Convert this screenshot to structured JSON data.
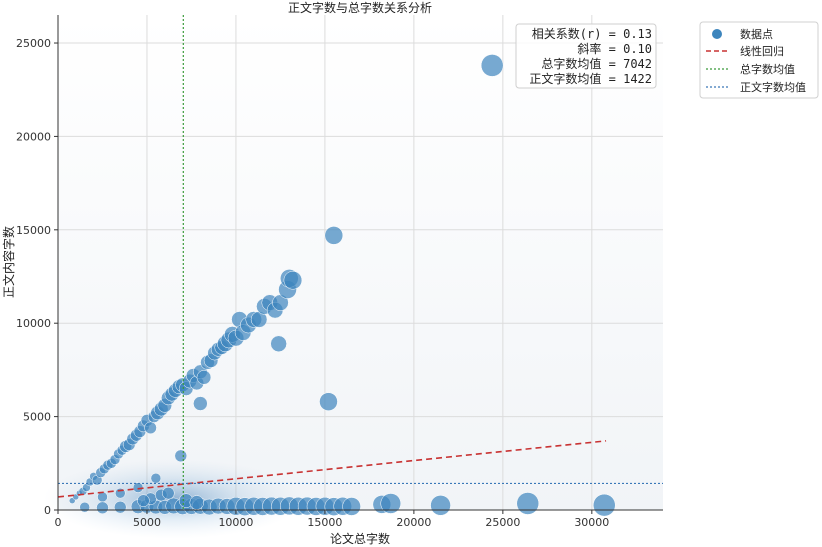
{
  "chart_data": {
    "type": "scatter",
    "title": "正文字数与总字数关系分析",
    "xlabel": "论文总字数",
    "ylabel": "正文内容字数",
    "xlim": [
      0,
      34000
    ],
    "ylim": [
      0,
      26500
    ],
    "xticks": [
      0,
      5000,
      10000,
      15000,
      20000,
      25000,
      30000
    ],
    "yticks": [
      0,
      5000,
      10000,
      15000,
      20000,
      25000
    ],
    "grid": true,
    "legend_position": "outside-top-right",
    "legend": [
      "数据点",
      "线性回归",
      "总字数均值",
      "正文字数均值"
    ],
    "annotations": [
      "相关系数(r) = 0.13",
      "斜率 = 0.10",
      "总字数均值 = 7042",
      "正文字数均值 = 1422"
    ],
    "colors": {
      "points": "#3d85bd",
      "regression": "#c83232",
      "x_mean": "#3a9a3a",
      "y_mean": "#3a78b8"
    },
    "regression": {
      "x": [
        0,
        30800
      ],
      "y": [
        700,
        3700
      ]
    },
    "x_mean": 7042,
    "y_mean": 1422,
    "density_center": [
      6500,
      600
    ],
    "series": [
      {
        "name": "数据点",
        "points": [
          [
            800,
            500,
            3
          ],
          [
            1000,
            700,
            3
          ],
          [
            1200,
            900,
            3
          ],
          [
            1400,
            1000,
            4
          ],
          [
            1600,
            1200,
            4
          ],
          [
            1800,
            1500,
            4
          ],
          [
            2000,
            1800,
            4
          ],
          [
            2200,
            1600,
            5
          ],
          [
            2400,
            2000,
            5
          ],
          [
            2600,
            2200,
            5
          ],
          [
            2800,
            2400,
            5
          ],
          [
            3000,
            2500,
            5
          ],
          [
            3200,
            2700,
            5
          ],
          [
            3400,
            3000,
            5
          ],
          [
            3600,
            3200,
            5
          ],
          [
            3800,
            3400,
            6
          ],
          [
            4000,
            3500,
            6
          ],
          [
            4200,
            3800,
            6
          ],
          [
            4400,
            4000,
            6
          ],
          [
            4600,
            4200,
            6
          ],
          [
            4800,
            4500,
            6
          ],
          [
            5000,
            4800,
            6
          ],
          [
            5200,
            4400,
            6
          ],
          [
            5400,
            5000,
            6
          ],
          [
            5600,
            5200,
            7
          ],
          [
            5800,
            5400,
            7
          ],
          [
            6000,
            5600,
            7
          ],
          [
            6200,
            6000,
            7
          ],
          [
            6400,
            6200,
            7
          ],
          [
            6600,
            6400,
            7
          ],
          [
            6800,
            6600,
            7
          ],
          [
            7000,
            6700,
            7
          ],
          [
            7200,
            6500,
            7
          ],
          [
            7400,
            6900,
            7
          ],
          [
            7600,
            7200,
            7
          ],
          [
            7800,
            6800,
            7
          ],
          [
            8000,
            7400,
            7
          ],
          [
            8200,
            7100,
            7
          ],
          [
            8400,
            7900,
            7
          ],
          [
            8600,
            8000,
            7
          ],
          [
            8800,
            8400,
            7
          ],
          [
            9000,
            8600,
            7
          ],
          [
            9200,
            8700,
            7
          ],
          [
            9400,
            8900,
            8
          ],
          [
            9600,
            9100,
            8
          ],
          [
            9800,
            9400,
            8
          ],
          [
            10000,
            9200,
            8
          ],
          [
            10200,
            10200,
            8
          ],
          [
            10400,
            9500,
            8
          ],
          [
            10700,
            9900,
            8
          ],
          [
            11000,
            10200,
            8
          ],
          [
            11300,
            10200,
            8
          ],
          [
            11600,
            10900,
            8
          ],
          [
            11900,
            11100,
            8
          ],
          [
            12200,
            10700,
            8
          ],
          [
            12500,
            11100,
            8
          ],
          [
            12900,
            11800,
            9
          ],
          [
            13000,
            12400,
            9
          ],
          [
            13200,
            12300,
            9
          ],
          [
            12400,
            8900,
            8
          ],
          [
            8000,
            5700,
            7
          ],
          [
            6900,
            2900,
            6
          ],
          [
            5500,
            1700,
            5
          ],
          [
            3500,
            900,
            5
          ],
          [
            4500,
            1200,
            5
          ],
          [
            2500,
            700,
            5
          ],
          [
            15200,
            5800,
            9
          ],
          [
            15500,
            14700,
            9
          ],
          [
            24400,
            23800,
            11
          ],
          [
            1500,
            150,
            5
          ],
          [
            2500,
            120,
            6
          ],
          [
            3500,
            150,
            6
          ],
          [
            4500,
            180,
            7
          ],
          [
            5000,
            200,
            7
          ],
          [
            5500,
            160,
            7
          ],
          [
            6000,
            140,
            7
          ],
          [
            6500,
            220,
            8
          ],
          [
            7000,
            180,
            8
          ],
          [
            7500,
            190,
            8
          ],
          [
            8000,
            200,
            8
          ],
          [
            8500,
            160,
            8
          ],
          [
            9000,
            210,
            8
          ],
          [
            9500,
            190,
            8
          ],
          [
            10000,
            200,
            9
          ],
          [
            10500,
            180,
            9
          ],
          [
            11000,
            200,
            9
          ],
          [
            11500,
            190,
            9
          ],
          [
            12000,
            210,
            9
          ],
          [
            12500,
            200,
            9
          ],
          [
            13000,
            220,
            9
          ],
          [
            13500,
            200,
            9
          ],
          [
            14000,
            210,
            9
          ],
          [
            14500,
            190,
            9
          ],
          [
            15000,
            200,
            9
          ],
          [
            15500,
            180,
            9
          ],
          [
            16000,
            200,
            9
          ],
          [
            16500,
            190,
            9
          ],
          [
            18200,
            300,
            9
          ],
          [
            18700,
            350,
            10
          ],
          [
            21500,
            250,
            10
          ],
          [
            26400,
            350,
            11
          ],
          [
            30700,
            260,
            11
          ],
          [
            5200,
            600,
            6
          ],
          [
            5800,
            800,
            6
          ],
          [
            6200,
            900,
            6
          ],
          [
            4800,
            500,
            6
          ],
          [
            7200,
            500,
            7
          ],
          [
            7800,
            400,
            7
          ]
        ]
      }
    ]
  }
}
